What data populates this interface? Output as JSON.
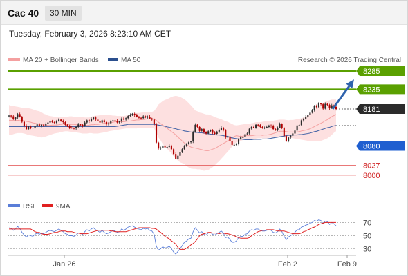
{
  "header": {
    "instrument": "Cac 40",
    "timeframe": "30 MIN"
  },
  "timestamp": "Tuesday, February 3, 2026 8:23:10 AM CET",
  "credit": "Research © 2026 Trading Central",
  "legend": {
    "bollinger": "MA 20 + Bollinger Bands",
    "ma50": "MA 50",
    "rsi": "RSI",
    "rsi_ma": "9MA"
  },
  "colors": {
    "up_candle": "#2c2c2c",
    "down_candle": "#b00000",
    "resistance": "#5aa000",
    "pivot": "#1f5fd0",
    "support": "#e04040",
    "bb_fill": "#fde0e0",
    "ma20": "#f4a0a0",
    "ma50": "#4a68a8",
    "arrow": "#2f63ad",
    "rsi_line": "#5a7ed8",
    "rsi_ma_line": "#e02020",
    "last_price_tag": "#2b2b2b"
  },
  "chart_data": [
    {
      "type": "candlestick",
      "price_scale": [
        7960,
        8300
      ],
      "x_ticks": [
        "Jan 26",
        "Feb 2",
        "Feb 9"
      ],
      "levels": [
        {
          "label": "8285",
          "value": 8285,
          "kind": "resistance"
        },
        {
          "label": "8235",
          "value": 8235,
          "kind": "resistance"
        },
        {
          "label": "8181",
          "value": 8181,
          "kind": "last"
        },
        {
          "label": "8080",
          "value": 8080,
          "kind": "pivot"
        },
        {
          "label": "8027",
          "value": 8027,
          "kind": "support"
        },
        {
          "label": "8000",
          "value": 8000,
          "kind": "support"
        }
      ],
      "close": [
        8163,
        8161,
        8153,
        8158,
        8167,
        8160,
        8146,
        8135,
        8126,
        8133,
        8130,
        8128,
        8135,
        8139,
        8134,
        8138,
        8136,
        8140,
        8144,
        8147,
        8145,
        8143,
        8148,
        8152,
        8149,
        8145,
        8138,
        8135,
        8130,
        8129,
        8128,
        8132,
        8139,
        8138,
        8135,
        8144,
        8150,
        8147,
        8154,
        8158,
        8152,
        8148,
        8144,
        8150,
        8145,
        8139,
        8142,
        8147,
        8150,
        8149,
        8144,
        8147,
        8155,
        8152,
        8156,
        8162,
        8165,
        8168,
        8164,
        8160,
        8157,
        8156,
        8161,
        8159,
        8160,
        8155,
        8152,
        8139,
        8089,
        8073,
        8075,
        8081,
        8076,
        8077,
        8081,
        8071,
        8058,
        8045,
        8053,
        8062,
        8071,
        8081,
        8085,
        8090,
        8092,
        8118,
        8138,
        8132,
        8121,
        8126,
        8117,
        8114,
        8120,
        8123,
        8116,
        8113,
        8119,
        8124,
        8130,
        8123,
        8103,
        8106,
        8094,
        8083,
        8083,
        8086,
        8098,
        8104,
        8104,
        8112,
        8114,
        8127,
        8132,
        8130,
        8138,
        8137,
        8132,
        8130,
        8130,
        8132,
        8136,
        8134,
        8126,
        8124,
        8130,
        8140,
        8129,
        8107,
        8093,
        8103,
        8108,
        8114,
        8122,
        8136,
        8137,
        8150,
        8154,
        8160,
        8164,
        8171,
        8177,
        8190,
        8186,
        8196,
        8194,
        8182,
        8195,
        8192,
        8183,
        8191,
        8187,
        8181
      ],
      "ma20": [
        8150,
        8150,
        8150,
        8150,
        8150,
        8149,
        8149,
        8149,
        8147,
        8146,
        8145,
        8143,
        8142,
        8141,
        8140,
        8138,
        8138,
        8137,
        8136,
        8136,
        8137,
        8137,
        8137,
        8138,
        8139,
        8140,
        8139,
        8139,
        8139,
        8139,
        8139,
        8138,
        8137,
        8136,
        8136,
        8136,
        8136,
        8137,
        8138,
        8138,
        8139,
        8139,
        8140,
        8141,
        8142,
        8143,
        8143,
        8144,
        8145,
        8146,
        8146,
        8146,
        8146,
        8146,
        8147,
        8148,
        8148,
        8149,
        8150,
        8151,
        8151,
        8152,
        8152,
        8153,
        8154,
        8154,
        8155,
        8153,
        8150,
        8145,
        8141,
        8137,
        8133,
        8128,
        8124,
        8119,
        8115,
        8110,
        8104,
        8099,
        8093,
        8088,
        8084,
        8080,
        8077,
        8075,
        8074,
        8073,
        8071,
        8070,
        8068,
        8067,
        8067,
        8069,
        8071,
        8073,
        8076,
        8080,
        8084,
        8087,
        8090,
        8094,
        8098,
        8102,
        8106,
        8108,
        8107,
        8106,
        8107,
        8108,
        8108,
        8108,
        8108,
        8109,
        8110,
        8110,
        8110,
        8109,
        8110,
        8110,
        8111,
        8112,
        8114,
        8116,
        8118,
        8120,
        8120,
        8120,
        8119,
        8118,
        8118,
        8118,
        8118,
        8118,
        8119,
        8121,
        8122,
        8123,
        8125,
        8127,
        8130,
        8133,
        8136,
        8139,
        8142,
        8145,
        8149,
        8152,
        8156,
        8160,
        8163,
        8166
      ],
      "bb_upper": [
        8192,
        8190,
        8189,
        8188,
        8187,
        8186,
        8184,
        8184,
        8184,
        8183,
        8182,
        8180,
        8178,
        8176,
        8175,
        8172,
        8168,
        8166,
        8163,
        8162,
        8161,
        8160,
        8160,
        8159,
        8159,
        8160,
        8160,
        8160,
        8161,
        8161,
        8160,
        8160,
        8160,
        8160,
        8159,
        8158,
        8158,
        8158,
        8160,
        8162,
        8163,
        8163,
        8164,
        8164,
        8165,
        8165,
        8164,
        8164,
        8163,
        8163,
        8162,
        8162,
        8162,
        8162,
        8163,
        8165,
        8166,
        8167,
        8169,
        8170,
        8170,
        8171,
        8172,
        8172,
        8173,
        8173,
        8173,
        8176,
        8183,
        8193,
        8198,
        8203,
        8206,
        8208,
        8211,
        8214,
        8216,
        8217,
        8216,
        8214,
        8211,
        8208,
        8203,
        8197,
        8191,
        8184,
        8177,
        8175,
        8171,
        8170,
        8168,
        8166,
        8166,
        8164,
        8162,
        8159,
        8157,
        8155,
        8153,
        8150,
        8148,
        8146,
        8143,
        8140,
        8137,
        8136,
        8137,
        8138,
        8139,
        8140,
        8140,
        8141,
        8142,
        8143,
        8145,
        8145,
        8145,
        8146,
        8147,
        8147,
        8148,
        8149,
        8149,
        8150,
        8151,
        8152,
        8152,
        8152,
        8151,
        8150,
        8151,
        8151,
        8152,
        8153,
        8154,
        8156,
        8158,
        8161,
        8164,
        8168,
        8172,
        8177,
        8183,
        8188,
        8193,
        8198,
        8201,
        8203,
        8205,
        8207,
        8207,
        8207
      ],
      "bb_lower": [
        8110,
        8110,
        8112,
        8114,
        8115,
        8115,
        8115,
        8114,
        8112,
        8110,
        8109,
        8108,
        8107,
        8106,
        8104,
        8103,
        8104,
        8106,
        8108,
        8110,
        8112,
        8114,
        8115,
        8116,
        8118,
        8119,
        8120,
        8120,
        8119,
        8118,
        8117,
        8117,
        8116,
        8115,
        8114,
        8114,
        8114,
        8115,
        8115,
        8114,
        8114,
        8114,
        8115,
        8116,
        8117,
        8118,
        8120,
        8121,
        8122,
        8123,
        8124,
        8125,
        8126,
        8127,
        8128,
        8128,
        8128,
        8128,
        8128,
        8128,
        8129,
        8129,
        8129,
        8130,
        8130,
        8130,
        8130,
        8128,
        8117,
        8103,
        8095,
        8085,
        8078,
        8072,
        8066,
        8060,
        8052,
        8045,
        8040,
        8035,
        8033,
        8030,
        8025,
        8021,
        8018,
        8017,
        8017,
        8016,
        8016,
        8014,
        8012,
        8013,
        8014,
        8018,
        8022,
        8027,
        8033,
        8038,
        8045,
        8051,
        8058,
        8064,
        8072,
        8078,
        8085,
        8090,
        8092,
        8094,
        8096,
        8097,
        8097,
        8097,
        8098,
        8098,
        8100,
        8101,
        8101,
        8101,
        8101,
        8101,
        8102,
        8103,
        8103,
        8104,
        8104,
        8105,
        8105,
        8104,
        8103,
        8103,
        8102,
        8101,
        8100,
        8099,
        8098,
        8097,
        8096,
        8095,
        8094,
        8093,
        8093,
        8093,
        8093,
        8093,
        8094,
        8096,
        8098,
        8101,
        8105,
        8110,
        8116,
        8120
      ],
      "ma50": [
        8133,
        8133,
        8133,
        8133,
        8133,
        8133,
        8133,
        8133,
        8133,
        8133,
        8133,
        8133,
        8133,
        8133,
        8133,
        8133,
        8133,
        8133,
        8133,
        8133,
        8133,
        8133,
        8133,
        8133,
        8133,
        8133,
        8133,
        8133,
        8133,
        8133,
        8133,
        8133,
        8133,
        8133,
        8133,
        8133,
        8133,
        8133,
        8133,
        8133,
        8133,
        8133,
        8133,
        8133,
        8133,
        8133,
        8133,
        8133,
        8133,
        8133,
        8134,
        8135,
        8136,
        8137,
        8138,
        8139,
        8139,
        8139,
        8139,
        8139,
        8139,
        8139,
        8139,
        8139,
        8139,
        8139,
        8139,
        8139,
        8138,
        8137,
        8136,
        8135,
        8134,
        8132,
        8131,
        8130,
        8128,
        8127,
        8125,
        8124,
        8123,
        8121,
        8120,
        8119,
        8118,
        8118,
        8117,
        8117,
        8116,
        8116,
        8115,
        8114,
        8113,
        8112,
        8112,
        8111,
        8110,
        8110,
        8109,
        8108,
        8107,
        8106,
        8104,
        8102,
        8101,
        8100,
        8099,
        8099,
        8098,
        8097,
        8097,
        8097,
        8097,
        8098,
        8098,
        8098,
        8098,
        8099,
        8099,
        8099,
        8100,
        8101,
        8102,
        8103,
        8104,
        8105,
        8106,
        8107,
        8108,
        8109,
        8109,
        8110,
        8110,
        8110,
        8111,
        8111,
        8112,
        8113,
        8114,
        8115,
        8117,
        8119,
        8120,
        8122,
        8124,
        8126,
        8128,
        8130,
        8131,
        8133,
        8135,
        8136
      ],
      "forecast_arrow": {
        "from": 8181,
        "to": 8262
      }
    },
    {
      "type": "line",
      "title": "RSI",
      "y_ticks": [
        70,
        50,
        30
      ],
      "ylim": [
        20,
        82
      ],
      "series": [
        {
          "name": "RSI",
          "values": [
            62,
            61,
            58,
            60,
            64,
            61,
            55,
            51,
            48,
            51,
            50,
            49,
            52,
            54,
            52,
            54,
            53,
            55,
            57,
            58,
            57,
            56,
            58,
            60,
            58,
            56,
            53,
            52,
            50,
            50,
            49,
            51,
            54,
            54,
            52,
            56,
            59,
            57,
            60,
            62,
            59,
            57,
            55,
            58,
            55,
            53,
            54,
            56,
            58,
            57,
            55,
            56,
            60,
            58,
            60,
            63,
            64,
            65,
            63,
            61,
            60,
            59,
            61,
            60,
            61,
            58,
            57,
            52,
            34,
            28,
            30,
            33,
            31,
            32,
            34,
            30,
            25,
            22,
            26,
            30,
            35,
            40,
            42,
            45,
            46,
            56,
            62,
            58,
            54,
            56,
            52,
            51,
            54,
            55,
            52,
            51,
            53,
            55,
            57,
            54,
            47,
            48,
            44,
            40,
            40,
            42,
            47,
            49,
            49,
            52,
            53,
            57,
            59,
            58,
            60,
            60,
            58,
            57,
            57,
            58,
            59,
            58,
            55,
            54,
            56,
            60,
            56,
            49,
            44,
            48,
            50,
            52,
            55,
            59,
            59,
            63,
            64,
            66,
            67,
            69,
            70,
            73,
            72,
            74,
            73,
            68,
            72,
            71,
            67,
            70,
            68,
            65
          ]
        },
        {
          "name": "9MA",
          "values": [
            60,
            60,
            60,
            60,
            60,
            60,
            60,
            60,
            60,
            60,
            60,
            58,
            56,
            55,
            55,
            53,
            52,
            52,
            52,
            53,
            54,
            55,
            55,
            56,
            57,
            57,
            57,
            56,
            56,
            56,
            55,
            54,
            54,
            53,
            53,
            53,
            53,
            54,
            55,
            56,
            57,
            58,
            58,
            58,
            58,
            58,
            58,
            57,
            57,
            56,
            56,
            56,
            56,
            56,
            56,
            57,
            58,
            59,
            60,
            61,
            62,
            62,
            62,
            62,
            62,
            62,
            61,
            61,
            60,
            57,
            55,
            52,
            49,
            47,
            45,
            42,
            40,
            37,
            32,
            29,
            29,
            29,
            31,
            33,
            36,
            38,
            41,
            45,
            50,
            52,
            53,
            54,
            55,
            55,
            54,
            54,
            54,
            53,
            54,
            54,
            53,
            53,
            52,
            51,
            50,
            48,
            47,
            46,
            46,
            46,
            46,
            47,
            50,
            52,
            54,
            56,
            57,
            58,
            58,
            59,
            59,
            59,
            59,
            58,
            57,
            57,
            57,
            57,
            56,
            55,
            54,
            53,
            53,
            53,
            53,
            54,
            56,
            57,
            59,
            60,
            62,
            63,
            65,
            67,
            68,
            69,
            70,
            70,
            70,
            70,
            70,
            70
          ]
        }
      ]
    }
  ]
}
